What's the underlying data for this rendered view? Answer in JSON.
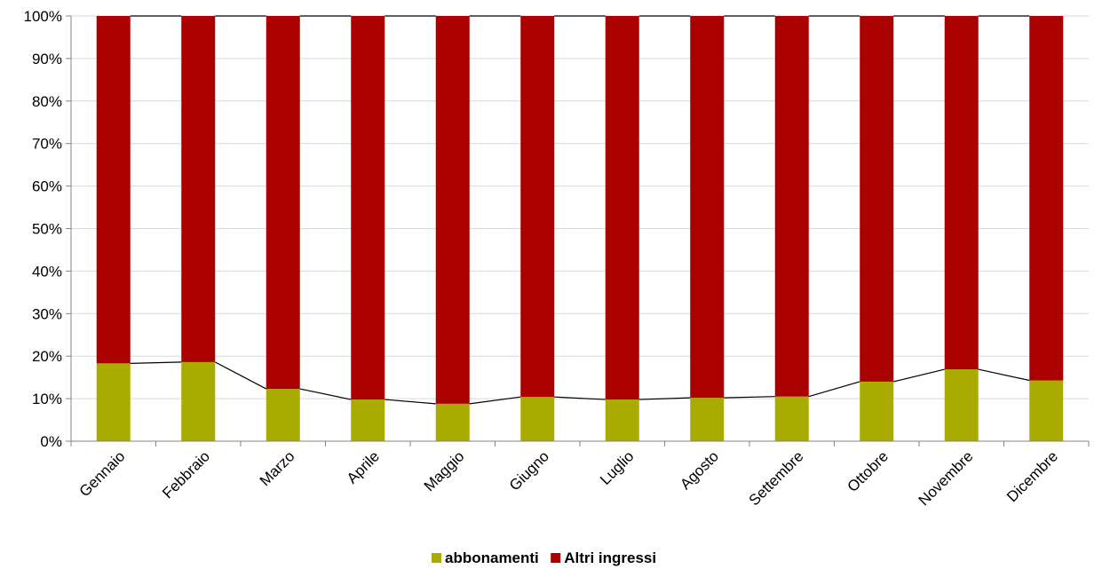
{
  "chart_data": {
    "type": "bar",
    "stacked": "percent",
    "categories": [
      "Gennaio",
      "Febbraio",
      "Marzo",
      "Aprile",
      "Maggio",
      "Giugno",
      "Luglio",
      "Agosto",
      "Settembre",
      "Ottobre",
      "Novembre",
      "Dicembre"
    ],
    "series": [
      {
        "name": "abbonamenti",
        "color": "#a9ab00",
        "values": [
          18.3,
          18.6,
          12.3,
          9.8,
          8.8,
          10.4,
          9.8,
          10.2,
          10.5,
          14.0,
          16.9,
          14.3
        ]
      },
      {
        "name": "Altri ingressi",
        "color": "#ab0000",
        "values": [
          81.7,
          81.4,
          87.7,
          90.2,
          91.2,
          89.6,
          90.2,
          89.8,
          89.5,
          86.0,
          83.1,
          85.7
        ]
      }
    ],
    "series_lines": "on",
    "y_ticks": [
      "0%",
      "10%",
      "20%",
      "30%",
      "40%",
      "50%",
      "60%",
      "70%",
      "80%",
      "90%",
      "100%"
    ],
    "ylim": [
      0,
      100
    ],
    "grid": true,
    "legend_position": "bottom",
    "title": "",
    "xlabel": "",
    "ylabel": ""
  }
}
